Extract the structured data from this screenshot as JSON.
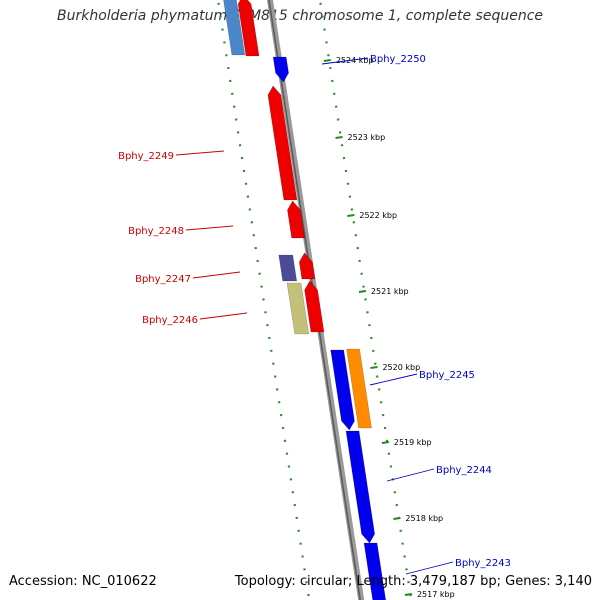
{
  "title": "Burkholderia phymatum STM815 chromosome 1, complete sequence",
  "footer": {
    "accession_label": "Accession: NC_010622",
    "summary": "Topology: circular; Length: 3,479,187 bp; Genes: 3,140"
  },
  "genes": [
    {
      "name": "Bphy_2250",
      "strand": "-",
      "color": "#0000ee",
      "label_color": "#0000cc",
      "label_side": "right"
    },
    {
      "name": "Bphy_2249",
      "strand": "+",
      "color": "#ee0000",
      "label_color": "#cc0000",
      "label_side": "left"
    },
    {
      "name": "Bphy_2248",
      "strand": "+",
      "color": "#ee0000",
      "label_color": "#cc0000",
      "label_side": "left"
    },
    {
      "name": "Bphy_2247",
      "strand": "+",
      "color": "#ee0000",
      "label_color": "#cc0000",
      "label_side": "left"
    },
    {
      "name": "Bphy_2246",
      "strand": "+",
      "color": "#ee0000",
      "label_color": "#cc0000",
      "label_side": "left"
    },
    {
      "name": "Bphy_2245",
      "strand": "-",
      "color": "#0000ee",
      "label_color": "#0000cc",
      "label_side": "right"
    },
    {
      "name": "Bphy_2244",
      "strand": "-",
      "color": "#0000ee",
      "label_color": "#0000cc",
      "label_side": "right"
    },
    {
      "name": "Bphy_2243",
      "strand": "-",
      "color": "#0000ee",
      "label_color": "#0000cc",
      "label_side": "right"
    }
  ],
  "ticks": [
    "2524 kbp",
    "2523 kbp",
    "2522 kbp",
    "2521 kbp",
    "2520 kbp",
    "2519 kbp",
    "2518 kbp",
    "2517 kbp"
  ],
  "colors": {
    "backbone": "#888888",
    "tick_mark": "#228b22",
    "dotted_track": "#2e8b2e",
    "forward": "#ee0000",
    "reverse": "#0000ee",
    "cog_steelblue": "#4a86c8",
    "cog_slate": "#4b4b9a",
    "cog_khaki": "#c4c07a",
    "cog_orange": "#ff8c00"
  }
}
